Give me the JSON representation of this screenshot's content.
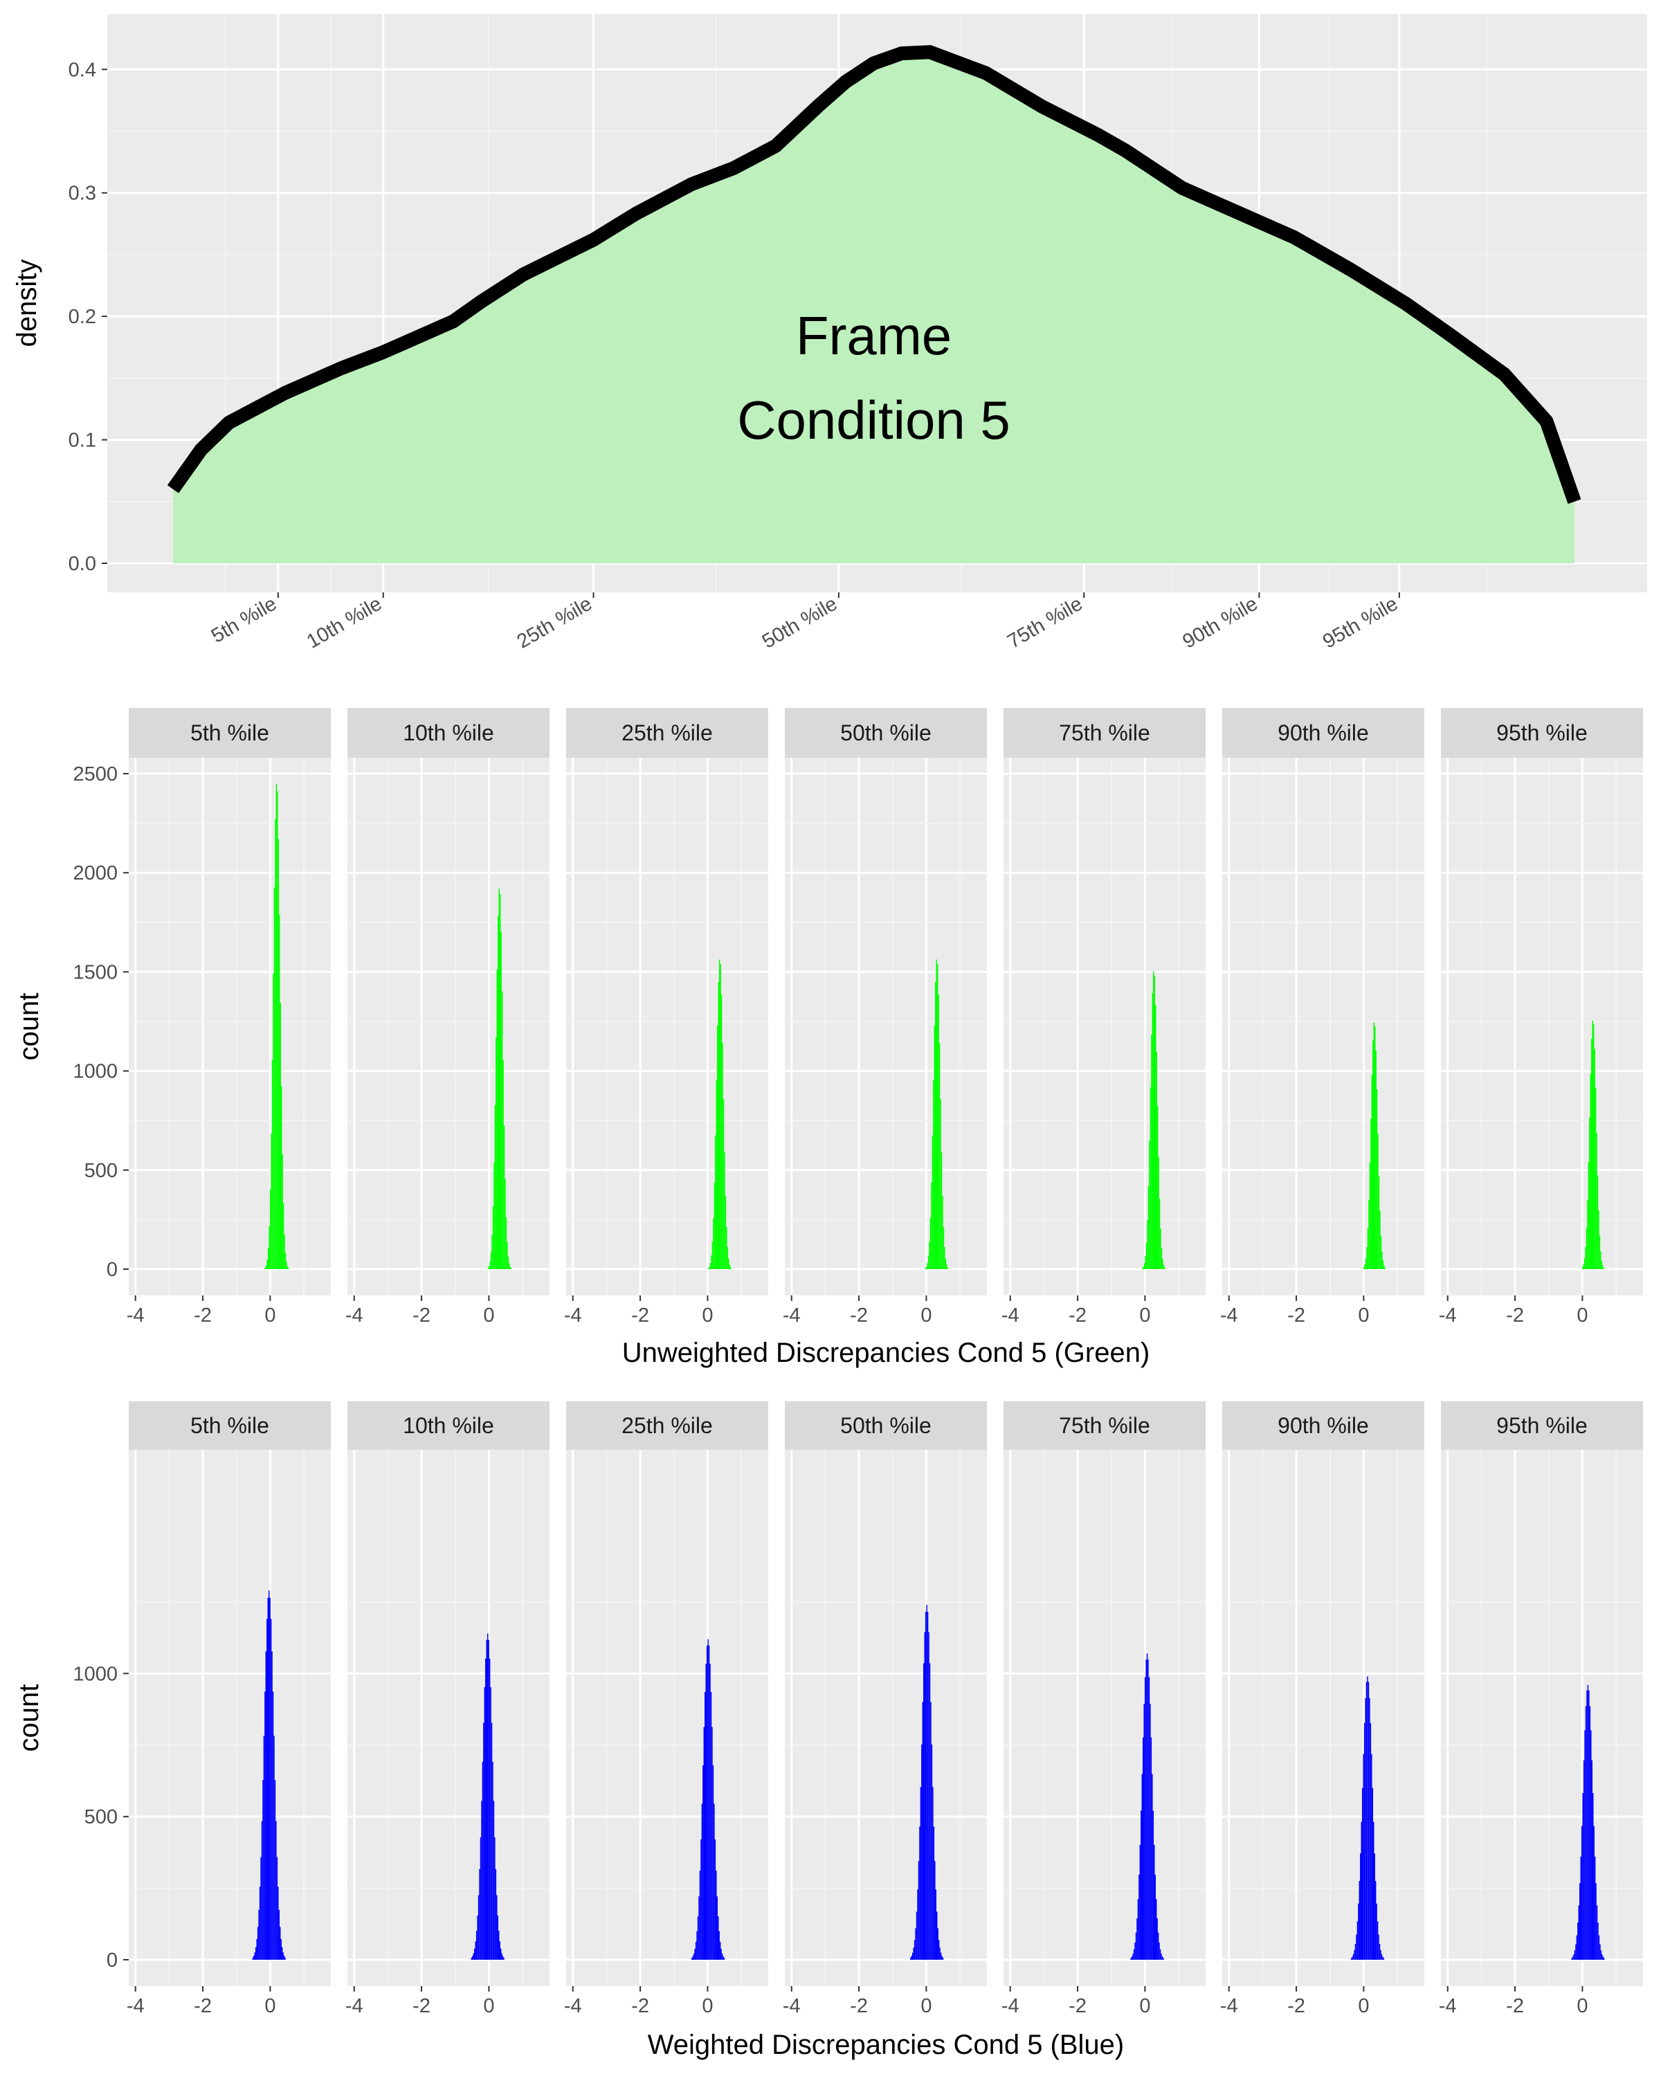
{
  "chart_data": [
    {
      "type": "area",
      "title": "",
      "xlabel": "",
      "ylabel": "density",
      "ylim": [
        0,
        0.42
      ],
      "yticks": [
        "0.0",
        "0.1",
        "0.2",
        "0.3",
        "0.4"
      ],
      "ytick_values": [
        0.0,
        0.1,
        0.2,
        0.3,
        0.4
      ],
      "annotation": [
        "Frame",
        "Condition 5"
      ],
      "grid": true,
      "fill_color": "#bdf0bd",
      "line_color": "#000000",
      "x": [
        0,
        0.02,
        0.04,
        0.08,
        0.12,
        0.15,
        0.2,
        0.22,
        0.25,
        0.3,
        0.33,
        0.37,
        0.4,
        0.43,
        0.46,
        0.48,
        0.5,
        0.52,
        0.54,
        0.58,
        0.62,
        0.66,
        0.68,
        0.72,
        0.76,
        0.8,
        0.84,
        0.88,
        0.91,
        0.95,
        0.98,
        1.0
      ],
      "y": [
        0.06,
        0.092,
        0.114,
        0.138,
        0.158,
        0.171,
        0.196,
        0.212,
        0.234,
        0.262,
        0.283,
        0.307,
        0.32,
        0.338,
        0.37,
        0.39,
        0.405,
        0.413,
        0.414,
        0.397,
        0.37,
        0.347,
        0.334,
        0.304,
        0.284,
        0.264,
        0.238,
        0.21,
        0.186,
        0.153,
        0.115,
        0.05
      ],
      "percentile_markers": [
        {
          "label": "5th %ile",
          "x": 0.075
        },
        {
          "label": "10th %ile",
          "x": 0.15
        },
        {
          "label": "25th %ile",
          "x": 0.3
        },
        {
          "label": "50th %ile",
          "x": 0.475
        },
        {
          "label": "75th %ile",
          "x": 0.65
        },
        {
          "label": "90th %ile",
          "x": 0.775
        },
        {
          "label": "95th %ile",
          "x": 0.875
        }
      ]
    },
    {
      "type": "bar",
      "title": "",
      "xlabel": "Unweighted Discrepancies Cond 5 (Green)",
      "ylabel": "count",
      "color": "#00ff00",
      "xlim": [
        -4.2,
        1.8
      ],
      "xticks": [
        "-4",
        "-2",
        "0"
      ],
      "xtick_values": [
        -4,
        -2,
        0
      ],
      "ylim": [
        0,
        2500
      ],
      "yticks": [
        "0",
        "500",
        "1000",
        "1500",
        "2000",
        "2500"
      ],
      "ytick_values": [
        0,
        500,
        1000,
        1500,
        2000,
        2500
      ],
      "panels": [
        {
          "label": "5th %ile",
          "center": 0.18,
          "sd": 0.1,
          "peak": 2460
        },
        {
          "label": "10th %ile",
          "center": 0.3,
          "sd": 0.1,
          "peak": 1930
        },
        {
          "label": "25th %ile",
          "center": 0.35,
          "sd": 0.1,
          "peak": 1570
        },
        {
          "label": "50th %ile",
          "center": 0.3,
          "sd": 0.1,
          "peak": 1570
        },
        {
          "label": "75th %ile",
          "center": 0.25,
          "sd": 0.1,
          "peak": 1510
        },
        {
          "label": "90th %ile",
          "center": 0.3,
          "sd": 0.1,
          "peak": 1250
        },
        {
          "label": "95th %ile",
          "center": 0.3,
          "sd": 0.1,
          "peak": 1260
        }
      ]
    },
    {
      "type": "bar",
      "title": "",
      "xlabel": "Weighted Discrepancies Cond 5 (Blue)",
      "ylabel": "count",
      "color": "#0000ff",
      "xlim": [
        -4.2,
        1.8
      ],
      "xticks": [
        "-4",
        "-2",
        "0"
      ],
      "xtick_values": [
        -4,
        -2,
        0
      ],
      "ylim": [
        0,
        1320
      ],
      "yticks": [
        "0",
        "500",
        "1000"
      ],
      "ytick_values": [
        0,
        500,
        1000
      ],
      "panels": [
        {
          "label": "5th %ile",
          "center": -0.05,
          "sd": 0.15,
          "peak": 1290
        },
        {
          "label": "10th %ile",
          "center": -0.05,
          "sd": 0.15,
          "peak": 1140
        },
        {
          "label": "25th %ile",
          "center": 0.0,
          "sd": 0.15,
          "peak": 1120
        },
        {
          "label": "50th %ile",
          "center": 0.0,
          "sd": 0.15,
          "peak": 1240
        },
        {
          "label": "75th %ile",
          "center": 0.05,
          "sd": 0.15,
          "peak": 1070
        },
        {
          "label": "90th %ile",
          "center": 0.1,
          "sd": 0.15,
          "peak": 990
        },
        {
          "label": "95th %ile",
          "center": 0.15,
          "sd": 0.15,
          "peak": 960
        }
      ]
    }
  ]
}
